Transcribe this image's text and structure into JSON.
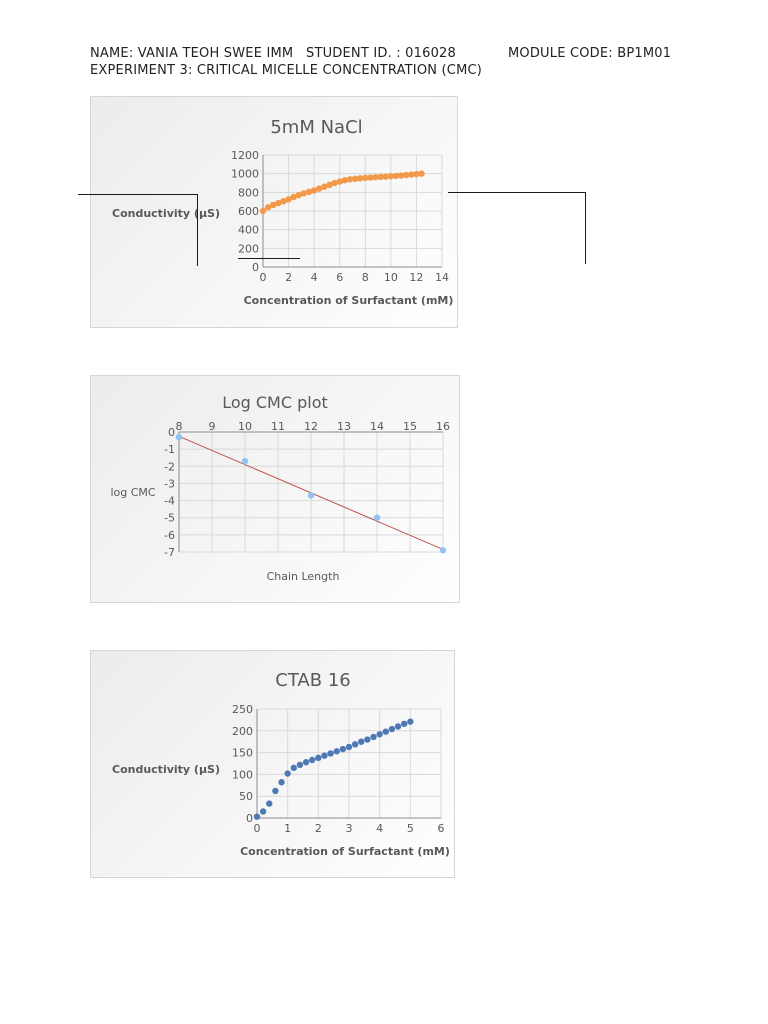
{
  "header": {
    "name": "NAME: VANIA TEOH SWEE IMM",
    "student_id": "STUDENT ID. : 016028",
    "module_code": "MODULE CODE: BP1M01",
    "experiment": "EXPERIMENT 3: CRITICAL MICELLE CONCENTRATION (CMC)"
  },
  "chart_data": [
    {
      "type": "scatter",
      "title": "5mM NaCl",
      "xlabel": "Concentration of Surfactant (mM)",
      "ylabel": "Conductivity (µS)",
      "xlim": [
        0,
        14
      ],
      "ylim": [
        0,
        1200
      ],
      "xticks": [
        0,
        2,
        4,
        6,
        8,
        10,
        12,
        14
      ],
      "yticks": [
        0,
        200,
        400,
        600,
        800,
        1000,
        1200
      ],
      "grid": true,
      "legend": "none",
      "color": "#f2994a",
      "series": [
        {
          "x": [
            0,
            0.4,
            0.8,
            1.2,
            1.6,
            2.0,
            2.4,
            2.8,
            3.2,
            3.6,
            4.0,
            4.4,
            4.8,
            5.2,
            5.6,
            6.0,
            6.4,
            6.8,
            7.2,
            7.6,
            8.0,
            8.4,
            8.8,
            9.2,
            9.6,
            10.0,
            10.4,
            10.8,
            11.2,
            11.6,
            12.0,
            12.4
          ],
          "y": [
            600,
            640,
            665,
            685,
            705,
            725,
            750,
            770,
            790,
            805,
            820,
            840,
            860,
            880,
            900,
            915,
            930,
            940,
            945,
            950,
            955,
            958,
            962,
            965,
            968,
            972,
            976,
            980,
            985,
            990,
            995,
            1000
          ]
        }
      ]
    },
    {
      "type": "scatter",
      "title": "Log CMC plot",
      "xlabel": "Chain Length",
      "ylabel": "log CMC",
      "xlim": [
        8,
        16
      ],
      "ylim": [
        -7,
        0
      ],
      "xticks": [
        8,
        9,
        10,
        11,
        12,
        13,
        14,
        15,
        16
      ],
      "yticks": [
        0,
        -1,
        -2,
        -3,
        -4,
        -5,
        -6,
        -7
      ],
      "x_axis_position": "top",
      "grid": true,
      "legend": "none",
      "color": "#8fc3f5",
      "trendline_color": "#c0504d",
      "series": [
        {
          "x": [
            8,
            10,
            12,
            14,
            16
          ],
          "y": [
            -0.3,
            -1.7,
            -3.7,
            -5.0,
            -6.9
          ]
        }
      ],
      "trendline": {
        "x": [
          8,
          16
        ],
        "y": [
          -0.25,
          -6.85
        ]
      }
    },
    {
      "type": "scatter",
      "title": "CTAB 16",
      "xlabel": "Concentration of Surfactant (mM)",
      "ylabel": "Conductivity (µS)",
      "xlim": [
        0,
        6
      ],
      "ylim": [
        0,
        250
      ],
      "xticks": [
        0,
        1,
        2,
        3,
        4,
        5,
        6
      ],
      "yticks": [
        0,
        50,
        100,
        150,
        200,
        250
      ],
      "grid": true,
      "legend": "none",
      "color": "#4e79b4",
      "series": [
        {
          "x": [
            0,
            0.2,
            0.4,
            0.6,
            0.8,
            1.0,
            1.2,
            1.4,
            1.6,
            1.8,
            2.0,
            2.2,
            2.4,
            2.6,
            2.8,
            3.0,
            3.2,
            3.4,
            3.6,
            3.8,
            4.0,
            4.2,
            4.4,
            4.6,
            4.8,
            5.0
          ],
          "y": [
            3,
            15,
            33,
            62,
            82,
            102,
            115,
            122,
            128,
            133,
            138,
            143,
            148,
            153,
            158,
            163,
            169,
            175,
            180,
            186,
            192,
            198,
            204,
            210,
            216,
            221
          ]
        }
      ]
    }
  ]
}
